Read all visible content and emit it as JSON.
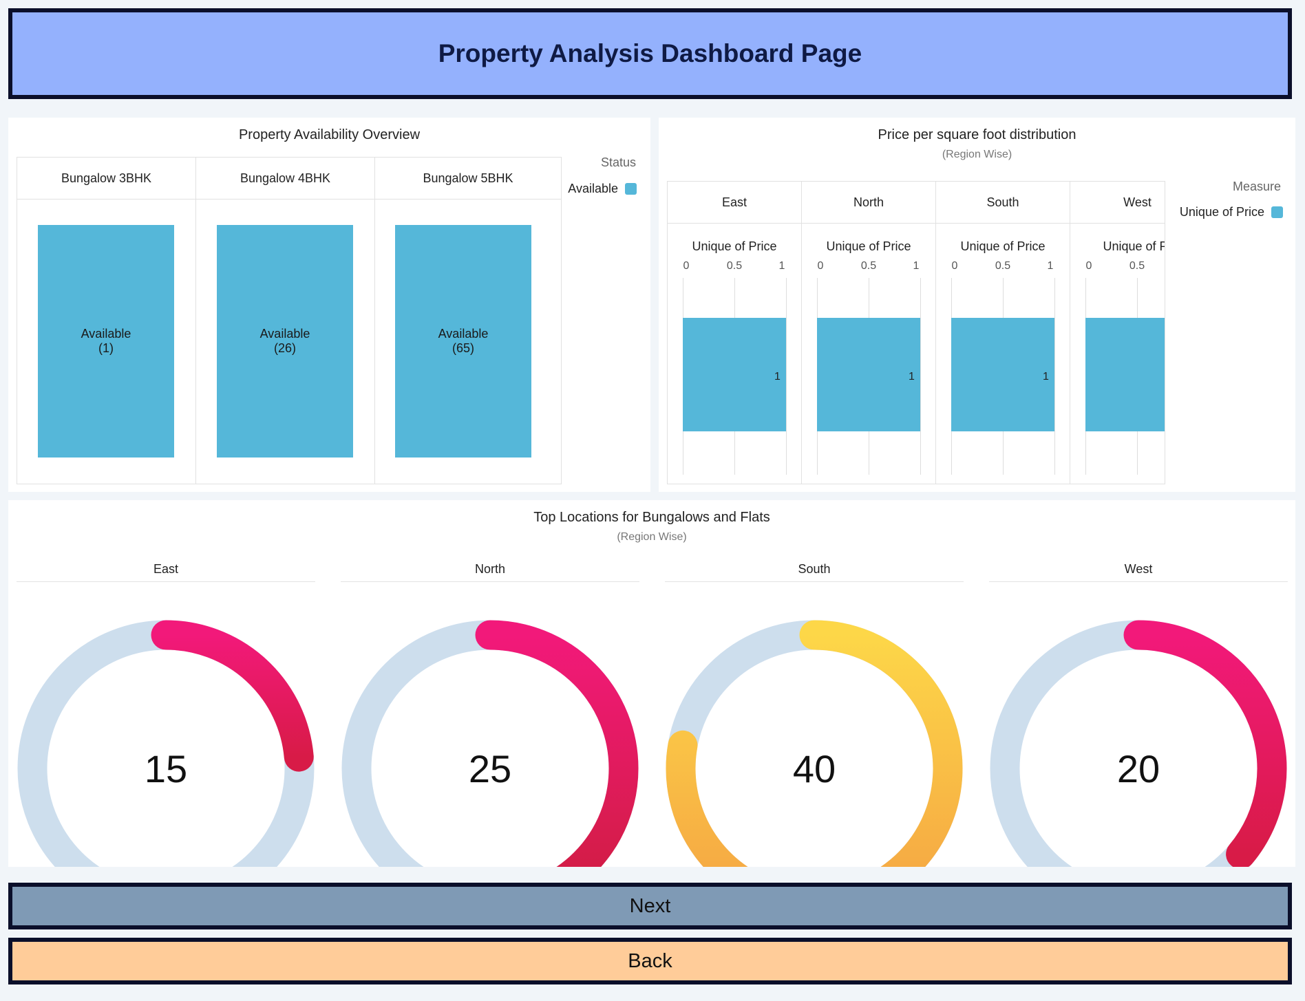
{
  "page": {
    "title": "Property Analysis Dashboard Page"
  },
  "availability": {
    "title": "Property Availability Overview",
    "legend_title": "Status",
    "legend_item": "Available",
    "bar_color": "#55b7d9",
    "columns": [
      {
        "label": "Bungalow 3BHK",
        "status": "Available",
        "count": "(1)"
      },
      {
        "label": "Bungalow 4BHK",
        "status": "Available",
        "count": "(26)"
      },
      {
        "label": "Bungalow 5BHK",
        "status": "Available",
        "count": "(65)"
      }
    ]
  },
  "price": {
    "title": "Price per square foot distribution",
    "subtitle": "(Region Wise)",
    "legend_title": "Measure",
    "legend_item": "Unique of Price",
    "bar_color": "#55b7d9",
    "measure_label": "Unique of Price",
    "measure_label_cut": "Unique of Pr",
    "ticks": [
      "0",
      "0.5",
      "1"
    ],
    "regions": [
      {
        "label": "East",
        "value_label": "1"
      },
      {
        "label": "North",
        "value_label": "1"
      },
      {
        "label": "South",
        "value_label": "1"
      },
      {
        "label": "West",
        "value_label": ""
      }
    ]
  },
  "locations": {
    "title": "Top Locations for Bungalows and Flats",
    "subtitle": "(Region Wise)",
    "gauges": [
      {
        "label": "East",
        "value": "15"
      },
      {
        "label": "North",
        "value": "25"
      },
      {
        "label": "South",
        "value": "40"
      },
      {
        "label": "West",
        "value": "20"
      }
    ]
  },
  "buttons": {
    "next": "Next",
    "back": "Back"
  },
  "colors": {
    "header_bg": "#94b1fd",
    "next_bg": "#7f9ab5",
    "back_bg": "#ffcc99",
    "gauge_track": "#cddeed",
    "gauge_red": "#e5195c",
    "gauge_yellow": "#f8b84a"
  },
  "chart_data": [
    {
      "type": "bar",
      "title": "Property Availability Overview",
      "categories": [
        "Bungalow 3BHK",
        "Bungalow 4BHK",
        "Bungalow 5BHK"
      ],
      "series": [
        {
          "name": "Available",
          "values": [
            1,
            26,
            65
          ]
        }
      ],
      "legend": "top-right"
    },
    {
      "type": "bar",
      "title": "Price per square foot distribution",
      "subtitle": "(Region Wise)",
      "categories": [
        "East",
        "North",
        "South",
        "West"
      ],
      "series": [
        {
          "name": "Unique of Price",
          "values": [
            1,
            1,
            1,
            1
          ]
        }
      ],
      "xlim": [
        0,
        1
      ],
      "legend": "top-right"
    },
    {
      "type": "gauge",
      "title": "Top Locations for Bungalows and Flats",
      "subtitle": "(Region Wise)",
      "categories": [
        "East",
        "North",
        "South",
        "West"
      ],
      "values": [
        15,
        25,
        40,
        20
      ]
    }
  ]
}
